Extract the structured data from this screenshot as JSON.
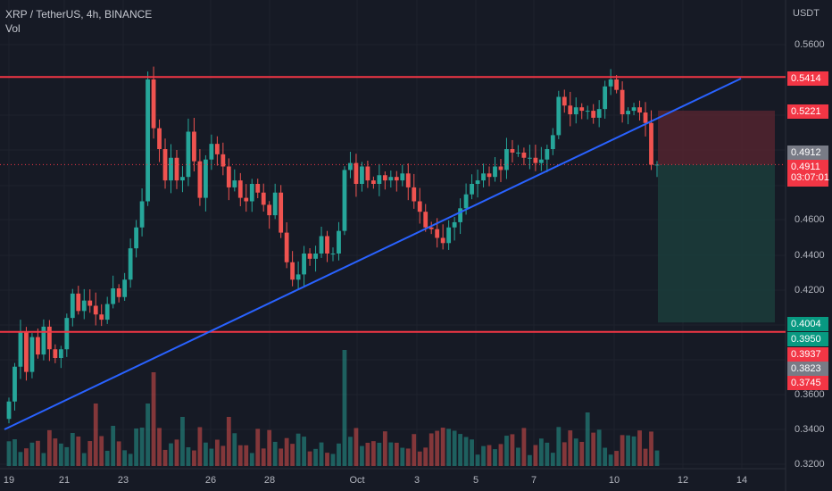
{
  "header": {
    "title": "XRP / TetherUS, 4h, BINANCE",
    "indicator": "Vol"
  },
  "y_axis": {
    "currency": "USDT",
    "ticks": [
      "0.5600",
      "0.4600",
      "0.4400",
      "0.4200",
      "0.3600",
      "0.3400",
      "0.3200"
    ]
  },
  "x_axis": {
    "ticks": [
      "19",
      "21",
      "23",
      "26",
      "28",
      "Oct",
      "3",
      "5",
      "7",
      "10",
      "12",
      "14"
    ]
  },
  "price_labels": [
    {
      "text": "0.5414",
      "color": "#f23645"
    },
    {
      "text": "0.5221",
      "color": "#f23645"
    },
    {
      "text": "0.4912",
      "color": "#787b86"
    },
    {
      "text": "0.4911",
      "sub": "03:07:01",
      "color": "#f23645"
    },
    {
      "text": "0.4004",
      "color": "#089981"
    },
    {
      "text": "0.3950",
      "color": "#089981"
    },
    {
      "text": "0.3937",
      "color": "#f23645"
    },
    {
      "text": "0.3823",
      "color": "#787b86"
    },
    {
      "text": "0.3745",
      "color": "#f23645"
    }
  ],
  "colors": {
    "background": "#161a25",
    "up": "#26a69a",
    "down": "#ef5350",
    "horizontal_line": "#f23645",
    "trendline": "#2962ff",
    "stop_zone": "#5b2630",
    "target_zone": "#1b3d3b"
  },
  "drawings": {
    "resistance": 0.5414,
    "support": 0.395,
    "position": {
      "entry": 0.4911,
      "stop": 0.5221,
      "target": 0.4004
    }
  },
  "chart_data": {
    "type": "candlestick",
    "symbol": "XRP / TetherUS",
    "interval": "4h",
    "exchange": "BINANCE",
    "ylim": [
      0.31,
      0.575
    ],
    "close_values": [
      0.355,
      0.375,
      0.395,
      0.372,
      0.392,
      0.382,
      0.398,
      0.385,
      0.38,
      0.385,
      0.403,
      0.417,
      0.407,
      0.413,
      0.41,
      0.405,
      0.402,
      0.411,
      0.42,
      0.415,
      0.425,
      0.443,
      0.455,
      0.47,
      0.54,
      0.512,
      0.5,
      0.482,
      0.495,
      0.482,
      0.484,
      0.51,
      0.493,
      0.472,
      0.494,
      0.503,
      0.497,
      0.49,
      0.478,
      0.482,
      0.472,
      0.47,
      0.48,
      0.475,
      0.468,
      0.462,
      0.475,
      0.452,
      0.435,
      0.425,
      0.428,
      0.44,
      0.437,
      0.44,
      0.45,
      0.44,
      0.44,
      0.453,
      0.488,
      0.492,
      0.48,
      0.49,
      0.482,
      0.48,
      0.485,
      0.482,
      0.484,
      0.482,
      0.486,
      0.478,
      0.47,
      0.464,
      0.455,
      0.454,
      0.449,
      0.446,
      0.455,
      0.458,
      0.466,
      0.474,
      0.48,
      0.482,
      0.486,
      0.484,
      0.49,
      0.488,
      0.5,
      0.498,
      0.498,
      0.495,
      0.495,
      0.492,
      0.494,
      0.5,
      0.508,
      0.53,
      0.525,
      0.52,
      0.524,
      0.522,
      0.522,
      0.518,
      0.523,
      0.536,
      0.54,
      0.534,
      0.52,
      0.522,
      0.524,
      0.521,
      0.515,
      0.491,
      0.4911
    ],
    "volumes_note": "bottom pane volume bars"
  }
}
